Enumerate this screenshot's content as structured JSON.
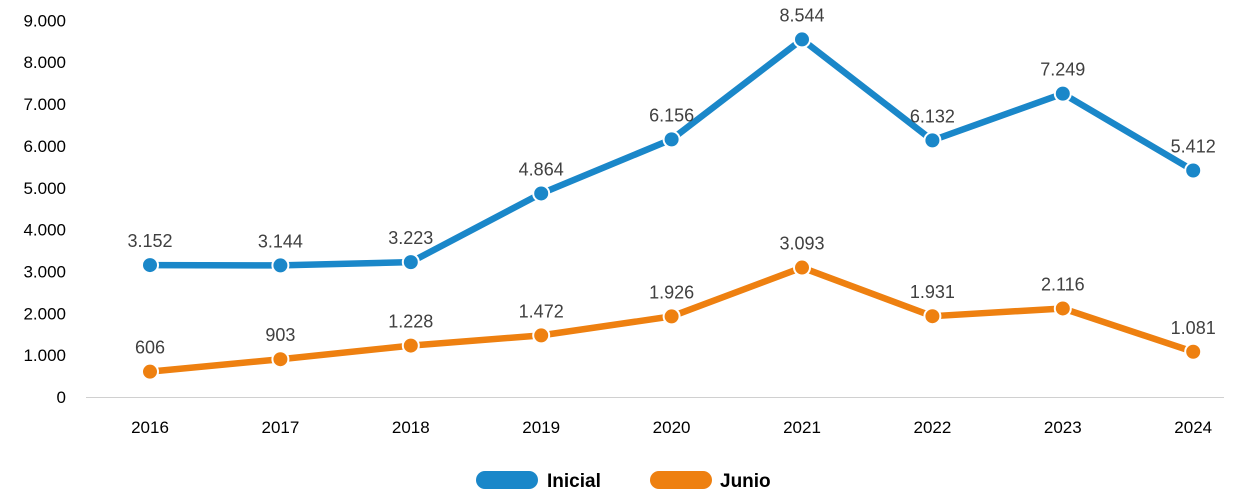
{
  "chart_data": {
    "type": "line",
    "categories": [
      "2016",
      "2017",
      "2018",
      "2019",
      "2020",
      "2021",
      "2022",
      "2023",
      "2024"
    ],
    "series": [
      {
        "name": "Inicial",
        "color": "#1A87C9",
        "values": [
          3152,
          3144,
          3223,
          4864,
          6156,
          8544,
          6132,
          7249,
          5412
        ],
        "labels": [
          "3.152",
          "3.144",
          "3.223",
          "4.864",
          "6.156",
          "8.544",
          "6.132",
          "7.249",
          "5.412"
        ]
      },
      {
        "name": "Junio",
        "color": "#EE8010",
        "values": [
          606,
          903,
          1228,
          1472,
          1926,
          3093,
          1931,
          2116,
          1081
        ],
        "labels": [
          "606",
          "903",
          "1.228",
          "1.472",
          "1.926",
          "3.093",
          "1.931",
          "2.116",
          "1.081"
        ]
      }
    ],
    "ylim": [
      0,
      9000
    ],
    "yticks": [
      0,
      1000,
      2000,
      3000,
      4000,
      5000,
      6000,
      7000,
      8000,
      9000
    ],
    "ytick_labels": [
      "0",
      "1.000",
      "2.000",
      "3.000",
      "4.000",
      "5.000",
      "6.000",
      "7.000",
      "8.000",
      "9.000"
    ],
    "grid": false,
    "legend_position": "bottom-center"
  }
}
